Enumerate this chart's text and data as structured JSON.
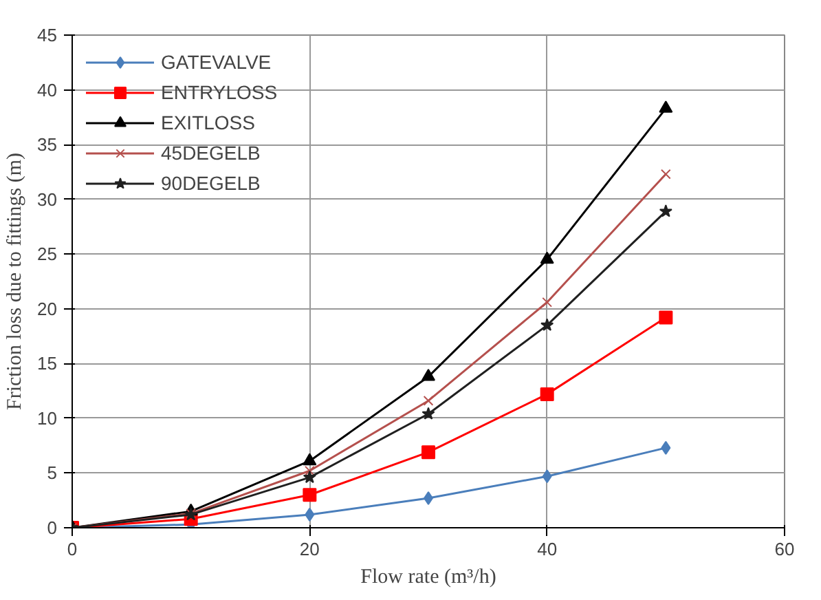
{
  "chart_data": {
    "type": "line",
    "xlabel": "Flow rate (m³/h)",
    "ylabel": "Friction loss due to fittings (m)",
    "x": [
      0,
      10,
      20,
      30,
      40,
      50
    ],
    "series": [
      {
        "name": "GATEVALVE",
        "color": "#4a7ebb",
        "marker": "diamond",
        "values": [
          0,
          0.3,
          1.2,
          2.7,
          4.7,
          7.3
        ]
      },
      {
        "name": "ENTRYLOSS",
        "color": "#ff0000",
        "marker": "square",
        "values": [
          0,
          0.8,
          3.0,
          6.9,
          12.2,
          19.2
        ]
      },
      {
        "name": "EXITLOSS",
        "color": "#000000",
        "marker": "triangle",
        "values": [
          0,
          1.5,
          6.1,
          13.8,
          24.5,
          38.3
        ]
      },
      {
        "name": "45DEGELB",
        "color": "#b5504d",
        "marker": "cross",
        "values": [
          0,
          1.3,
          5.2,
          11.6,
          20.6,
          32.3
        ]
      },
      {
        "name": "90DEGELB",
        "color": "#202020",
        "marker": "star",
        "values": [
          0,
          1.2,
          4.6,
          10.4,
          18.5,
          28.9
        ]
      }
    ],
    "xlim": [
      0,
      60
    ],
    "xticks": [
      0,
      20,
      40,
      60
    ],
    "ylim": [
      0,
      45
    ],
    "yticks": [
      0,
      5,
      10,
      15,
      20,
      25,
      30,
      35,
      40,
      45
    ],
    "grid": true,
    "legend": "top left",
    "line_style": "solid"
  }
}
